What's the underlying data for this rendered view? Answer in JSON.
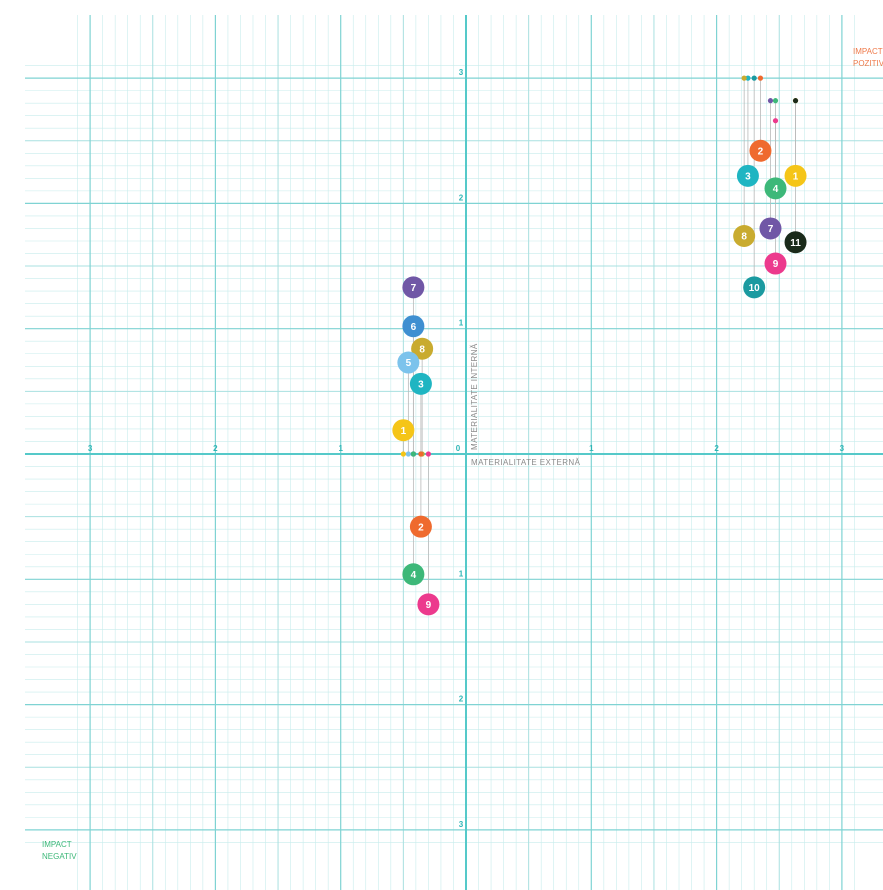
{
  "chart_data": {
    "type": "scatter",
    "x_label": "MATERIALITATE EXTERNĂ",
    "y_label": "MATERIALITATE INTERNĂ",
    "corner_positive": [
      "IMPACT",
      "POZITIV"
    ],
    "corner_negative": [
      "IMPACT",
      "NEGATIV"
    ],
    "xlim": [
      -3,
      3
    ],
    "ylim": [
      -3,
      3
    ],
    "x_tick_labels": [
      "3",
      "2",
      "1",
      "0",
      "1",
      "2",
      "3"
    ],
    "y_tick_labels": [
      "3",
      "2",
      "1",
      "1",
      "2",
      "3"
    ],
    "colors": {
      "1": "#f5c518",
      "2": "#ef6a2e",
      "3": "#1fb5c2",
      "4": "#3db879",
      "5": "#7cc3ec",
      "6": "#3e8fd1",
      "7": "#7057a6",
      "8": "#c9ab2f",
      "9": "#ec3a8d",
      "10": "#1a9aa0",
      "11": "#1a2a1a"
    },
    "series": [
      {
        "group": "positive",
        "points": [
          {
            "label": "1",
            "x": 2.63,
            "y": 2.22,
            "anchor_y": 2.82
          },
          {
            "label": "2",
            "x": 2.35,
            "y": 2.42,
            "anchor_y": 3.0
          },
          {
            "label": "3",
            "x": 2.25,
            "y": 2.22,
            "anchor_y": 3.0
          },
          {
            "label": "4",
            "x": 2.47,
            "y": 2.12,
            "anchor_y": 2.82
          },
          {
            "label": "7",
            "x": 2.43,
            "y": 1.8,
            "anchor_y": 2.82
          },
          {
            "label": "8",
            "x": 2.22,
            "y": 1.74,
            "anchor_y": 3.0
          },
          {
            "label": "9",
            "x": 2.47,
            "y": 1.52,
            "anchor_y": 2.66
          },
          {
            "label": "10",
            "x": 2.3,
            "y": 1.33,
            "anchor_y": 3.0
          },
          {
            "label": "11",
            "x": 2.63,
            "y": 1.69,
            "anchor_y": 2.82
          }
        ]
      },
      {
        "group": "internal-upper",
        "points": [
          {
            "label": "7",
            "x": -0.42,
            "y": 1.33,
            "anchor_y": 0
          },
          {
            "label": "6",
            "x": -0.42,
            "y": 1.02,
            "anchor_y": 0
          },
          {
            "label": "8",
            "x": -0.35,
            "y": 0.84,
            "anchor_y": 0
          },
          {
            "label": "5",
            "x": -0.46,
            "y": 0.73,
            "anchor_y": 0
          },
          {
            "label": "3",
            "x": -0.36,
            "y": 0.56,
            "anchor_y": 0
          },
          {
            "label": "1",
            "x": -0.5,
            "y": 0.19,
            "anchor_y": 0
          }
        ]
      },
      {
        "group": "negative",
        "points": [
          {
            "label": "2",
            "x": -0.36,
            "y": -0.58,
            "anchor_y": 0
          },
          {
            "label": "4",
            "x": -0.42,
            "y": -0.96,
            "anchor_y": 0
          },
          {
            "label": "9",
            "x": -0.3,
            "y": -1.2,
            "anchor_y": 0
          }
        ]
      }
    ]
  }
}
